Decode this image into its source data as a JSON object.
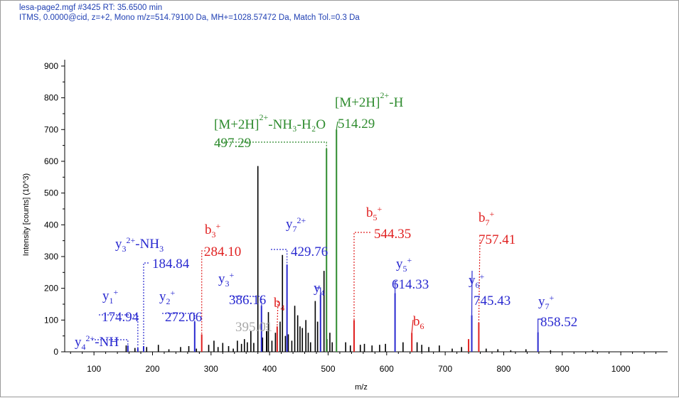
{
  "header": {
    "line1": "lesa-page2.mgf  #3425  RT: 35.6500 min",
    "line2": "ITMS, 0.0000@cid, z=+2, Mono m/z=514.79100 Da, MH+=1028.57472 Da, Match Tol.=0.3 Da"
  },
  "colors": {
    "peak_default": "#000000",
    "b_ion": "#e02020",
    "y_ion": "#2a2ad0",
    "precursor": "#2e8b2e",
    "unassigned_label": "#a8a8a8",
    "header_text": "#1f3fb3"
  },
  "chart_data": {
    "type": "bar",
    "xlabel": "m/z",
    "ylabel": "Intensity [counts] (10^3)",
    "xlim": [
      50,
      1080
    ],
    "ylim": [
      0,
      920
    ],
    "x_ticks": [
      100,
      200,
      300,
      400,
      500,
      600,
      700,
      800,
      900,
      1000
    ],
    "y_ticks": [
      0,
      100,
      200,
      300,
      400,
      500,
      600,
      700,
      800,
      900
    ],
    "grid": false,
    "unassigned_peaks": [
      [
        155,
        20
      ],
      [
        170,
        12
      ],
      [
        190,
        15
      ],
      [
        210,
        22
      ],
      [
        228,
        8
      ],
      [
        248,
        15
      ],
      [
        262,
        18
      ],
      [
        275,
        10
      ],
      [
        296,
        22
      ],
      [
        305,
        35
      ],
      [
        312,
        15
      ],
      [
        320,
        28
      ],
      [
        330,
        18
      ],
      [
        338,
        10
      ],
      [
        345,
        35
      ],
      [
        352,
        25
      ],
      [
        357,
        40
      ],
      [
        362,
        30
      ],
      [
        368,
        65
      ],
      [
        373,
        28
      ],
      [
        380,
        585
      ],
      [
        388,
        45
      ],
      [
        398,
        125
      ],
      [
        404,
        35
      ],
      [
        410,
        60
      ],
      [
        418,
        95
      ],
      [
        422,
        305
      ],
      [
        427,
        50
      ],
      [
        432,
        55
      ],
      [
        438,
        35
      ],
      [
        443,
        145
      ],
      [
        448,
        115
      ],
      [
        452,
        80
      ],
      [
        456,
        75
      ],
      [
        462,
        100
      ],
      [
        466,
        60
      ],
      [
        470,
        30
      ],
      [
        478,
        160
      ],
      [
        482,
        95
      ],
      [
        487,
        70
      ],
      [
        493,
        255
      ],
      [
        498,
        40
      ],
      [
        503,
        60
      ],
      [
        507,
        30
      ],
      [
        530,
        30
      ],
      [
        538,
        20
      ],
      [
        555,
        22
      ],
      [
        562,
        25
      ],
      [
        575,
        20
      ],
      [
        588,
        22
      ],
      [
        598,
        25
      ],
      [
        628,
        30
      ],
      [
        652,
        30
      ],
      [
        660,
        22
      ],
      [
        672,
        15
      ],
      [
        690,
        20
      ],
      [
        712,
        10
      ],
      [
        728,
        15
      ],
      [
        770,
        10
      ],
      [
        790,
        8
      ],
      [
        812,
        5
      ],
      [
        838,
        8
      ],
      [
        880,
        5
      ],
      [
        952,
        5
      ]
    ],
    "assigned_peaks": [
      {
        "mz": 157.94,
        "intensity": 20,
        "series": "y4-NH"
      },
      {
        "mz": 174.94,
        "intensity": 12,
        "series": "y"
      },
      {
        "mz": 184.84,
        "intensity": 18,
        "series": "y"
      },
      {
        "mz": 272.06,
        "intensity": 95,
        "series": "y"
      },
      {
        "mz": 284.1,
        "intensity": 55,
        "series": "b"
      },
      {
        "mz": 386.16,
        "intensity": 145,
        "series": "y"
      },
      {
        "mz": 395.01,
        "intensity": 65,
        "series": "other"
      },
      {
        "mz": 413,
        "intensity": 80,
        "series": "b"
      },
      {
        "mz": 429.76,
        "intensity": 275,
        "series": "y"
      },
      {
        "mz": 487,
        "intensity": 180,
        "series": "y"
      },
      {
        "mz": 497.29,
        "intensity": 640,
        "series": "precursor"
      },
      {
        "mz": 514.29,
        "intensity": 700,
        "series": "precursor"
      },
      {
        "mz": 544.35,
        "intensity": 100,
        "series": "b"
      },
      {
        "mz": 614.33,
        "intensity": 185,
        "series": "y"
      },
      {
        "mz": 643,
        "intensity": 60,
        "series": "b"
      },
      {
        "mz": 740,
        "intensity": 40,
        "series": "b"
      },
      {
        "mz": 745.43,
        "intensity": 115,
        "series": "y"
      },
      {
        "mz": 757.41,
        "intensity": 92,
        "series": "b"
      },
      {
        "mz": 858.52,
        "intensity": 62,
        "series": "y"
      }
    ]
  },
  "annotations": [
    {
      "id": "y4nh",
      "series": "y",
      "name": "y",
      "sub": "4",
      "sup": "2+",
      "suffix": "-NH",
      "value": "",
      "lx": 104,
      "ly": 469,
      "ax": 128,
      "ay": 477,
      "bx": 157.94,
      "by": 18,
      "dashed": true
    },
    {
      "id": "y1",
      "series": "y",
      "name": "y",
      "sub": "1",
      "sup": "+",
      "suffix": "",
      "value": "174.94",
      "lx": 143,
      "ly": 404,
      "vx": 142,
      "vy": 434,
      "ax": 138,
      "ay": 442,
      "bx": 174.94,
      "by": 10,
      "dashed": true
    },
    {
      "id": "y3nh3",
      "series": "y",
      "name": "y",
      "sub": "3",
      "sup": "2+",
      "suffix": "-NH",
      "sub2": "3",
      "value": "184.84",
      "lx": 161,
      "ly": 331,
      "vx": 213,
      "vy": 359,
      "ax": 208,
      "ay": 369,
      "bx": 184.84,
      "by": 16,
      "dashed": true
    },
    {
      "id": "y2",
      "series": "y",
      "name": "y",
      "sub": "2",
      "sup": "+",
      "suffix": "",
      "value": "272.06",
      "lx": 223,
      "ly": 405,
      "vx": 231,
      "vy": 434,
      "ax": 227,
      "ay": 440,
      "bx": 272.06,
      "by": 95,
      "dashed": true
    },
    {
      "id": "b3",
      "series": "b",
      "name": "b",
      "sub": "3",
      "sup": "+",
      "suffix": "",
      "value": "284.10",
      "lx": 287,
      "ly": 311,
      "vx": 286,
      "vy": 342,
      "ax": 288,
      "ay": 352,
      "bx": 284.1,
      "by": 55,
      "dashed": true
    },
    {
      "id": "y3",
      "series": "y",
      "name": "y",
      "sub": "3",
      "sup": "+",
      "suffix": "",
      "value": "386.16",
      "lx": 306,
      "ly": 380,
      "vx": 321,
      "vy": 410,
      "ax": 322,
      "ay": 416,
      "bx": 386.16,
      "by": 145,
      "dashed": true
    },
    {
      "id": "p395",
      "series": "other",
      "name": "",
      "sub": "",
      "sup": "",
      "suffix": "",
      "value": "395.01",
      "vx": 330,
      "vy": 448,
      "ax": 370,
      "ay": 454,
      "bx": 395.01,
      "by": 65,
      "dashed": true
    },
    {
      "id": "b4",
      "series": "b",
      "name": "b",
      "sub": "4",
      "sup": "",
      "suffix": "",
      "value": "",
      "lx": 384,
      "ly": 414,
      "ax": 390,
      "ay": 423,
      "bx": 413,
      "by": 80,
      "dashed": true
    },
    {
      "id": "y7b",
      "series": "y",
      "name": "y",
      "sub": "7",
      "sup": "2+",
      "suffix": "",
      "value": "429.76",
      "lx": 401,
      "ly": 303,
      "vx": 408,
      "vy": 342,
      "ax": 380,
      "ay": 350,
      "bx": 429.76,
      "by": 275,
      "dashed": true
    },
    {
      "id": "y4",
      "series": "y",
      "name": "y",
      "sub": "4",
      "sup": "",
      "suffix": "",
      "value": "",
      "lx": 440,
      "ly": 393,
      "ax": 443,
      "ay": 404,
      "bx": 487,
      "by": 180,
      "dashed": false
    },
    {
      "id": "mnh3",
      "series": "precursor",
      "name": "[M+2H]",
      "sub": "",
      "sup": "2+",
      "suffix": "-NH₃-H₂O",
      "value": "497.29",
      "lx": 300,
      "ly": 163,
      "vx": 300,
      "vy": 189,
      "ax": 302,
      "ay": 199,
      "bx": 497.29,
      "by": 640,
      "dashed": true
    },
    {
      "id": "mh",
      "series": "precursor",
      "name": "[M+2H]",
      "sub": "",
      "sup": "2+",
      "suffix": "-H",
      "value": "514.29",
      "lx": 470,
      "ly": 132,
      "vx": 474,
      "vy": 162,
      "ax": 474,
      "ay": 170,
      "bx": 514.29,
      "by": 700,
      "dashed": false
    },
    {
      "id": "b5",
      "series": "b",
      "name": "b",
      "sub": "5",
      "sup": "+",
      "suffix": "",
      "value": "544.35",
      "lx": 514,
      "ly": 287,
      "vx": 525,
      "vy": 317,
      "ax": 520,
      "ay": 326,
      "bx": 544.35,
      "by": 100,
      "dashed": true
    },
    {
      "id": "y5",
      "series": "y",
      "name": "y",
      "sub": "5",
      "sup": "+",
      "suffix": "",
      "value": "614.33",
      "lx": 556,
      "ly": 359,
      "vx": 550,
      "vy": 388,
      "ax": 557,
      "ay": 395,
      "bx": 614.33,
      "by": 185,
      "dashed": false
    },
    {
      "id": "b6",
      "series": "b",
      "name": "b",
      "sub": "6",
      "sup": "",
      "suffix": "",
      "value": "",
      "lx": 580,
      "ly": 440,
      "ax": 580,
      "ay": 449,
      "bx": 643,
      "by": 60,
      "dashed": false
    },
    {
      "id": "b7",
      "series": "b",
      "name": "b",
      "sub": "7",
      "sup": "+",
      "suffix": "",
      "value": "757.41",
      "lx": 672,
      "ly": 294,
      "vx": 672,
      "vy": 325,
      "ax": 674,
      "ay": 336,
      "bx": 757.41,
      "by": 92,
      "dashed": true
    },
    {
      "id": "y6",
      "series": "y",
      "name": "y",
      "sub": "6",
      "sup": "+",
      "suffix": "",
      "value": "745.43",
      "lx": 658,
      "ly": 382,
      "vx": 665,
      "vy": 411,
      "ax": 663,
      "ay": 380,
      "bx": 745.43,
      "by": 115,
      "dashed": false
    },
    {
      "id": "y7",
      "series": "y",
      "name": "y",
      "sub": "7",
      "sup": "+",
      "suffix": "",
      "value": "858.52",
      "lx": 756,
      "ly": 412,
      "vx": 759,
      "vy": 441,
      "ax": 760,
      "ay": 448,
      "bx": 858.52,
      "by": 62,
      "dashed": false
    }
  ]
}
